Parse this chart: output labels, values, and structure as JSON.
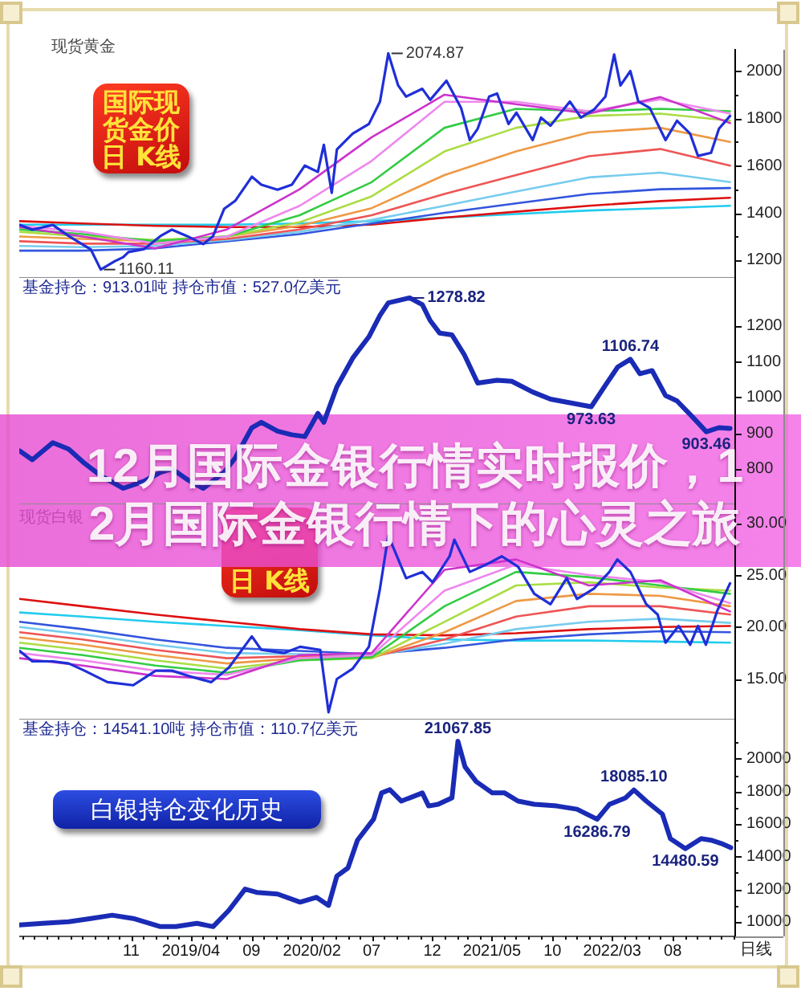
{
  "chart_data": [
    {
      "type": "line",
      "title": "12月国际金银行情实时报价，12月国际金银行情下的心灵之旅",
      "subtitle": "现货黄金",
      "annotations": [
        "国际现货金价日 K线",
        {
          "text": "2074.87",
          "x": "2020-08-12",
          "y": 2074.87
        },
        {
          "text": "1160.11",
          "x": "2018-08-16",
          "y": 1160.11
        }
      ],
      "series": [
        {
          "color": "#1f2fd8",
          "x": [
            "2018-01-23",
            "2018-02-24",
            "2018-04-17",
            "2018-05-27",
            "2018-07-06",
            "2018-07-22",
            "2018-08-16",
            "2018-09-20",
            "2018-10-12",
            "2018-10-25",
            "2018-12-04",
            "2019-01-14",
            "2019-02-12",
            "2019-03-22",
            "2019-05-02",
            "2019-05-27",
            "2019-06-24",
            "2019-07-22",
            "2019-09-02",
            "2019-09-26",
            "2019-11-06",
            "2019-12-12",
            "2020-01-14",
            "2020-02-16",
            "2020-03-02",
            "2020-03-22",
            "2020-04-04",
            "2020-05-14",
            "2020-06-24",
            "2020-07-22",
            "2020-08-12",
            "2020-09-06",
            "2020-09-26",
            "2020-11-06",
            "2020-11-26",
            "2021-01-06",
            "2021-02-12",
            "2021-03-06",
            "2021-03-26",
            "2021-04-24",
            "2021-05-14",
            "2021-06-12",
            "2021-07-02",
            "2021-08-12",
            "2021-09-02",
            "2021-09-26",
            "2021-11-14",
            "2021-12-12",
            "2022-01-14",
            "2022-02-12",
            "2022-03-06",
            "2022-03-22",
            "2022-04-16",
            "2022-05-06",
            "2022-06-04",
            "2022-07-14",
            "2022-08-12",
            "2022-09-14",
            "2022-10-04",
            "2022-11-06",
            "2022-11-26",
            "2022-12-24"
          ],
          "values": [
            1349,
            1329,
            1349,
            1302,
            1261,
            1245,
            1160.11,
            1195,
            1213,
            1234,
            1247,
            1302,
            1329,
            1302,
            1268,
            1302,
            1417,
            1451,
            1553,
            1519,
            1498,
            1519,
            1600,
            1573,
            1688,
            1485,
            1668,
            1735,
            1776,
            1871,
            2074.87,
            1939,
            1892,
            1925,
            1878,
            1959,
            1844,
            1708,
            1756,
            1892,
            1905,
            1776,
            1824,
            1708,
            1803,
            1769,
            1871,
            1803,
            1837,
            1892,
            2070,
            1939,
            2000,
            1871,
            1844,
            1708,
            1790,
            1735,
            1641,
            1654,
            1756,
            1810
          ]
        },
        {
          "color": "#cc33cc",
          "x": [
            "2018-01-23",
            "2018-07-01",
            "2019-01-01",
            "2019-07-01",
            "2020-01-01",
            "2020-07-01",
            "2021-01-01",
            "2021-07-01",
            "2022-01-01",
            "2022-07-01",
            "2022-12-24"
          ],
          "values": [
            1340,
            1300,
            1250,
            1330,
            1500,
            1720,
            1900,
            1860,
            1820,
            1890,
            1780
          ]
        },
        {
          "color": "#ee88ee",
          "x": [
            "2018-01-23",
            "2018-07-01",
            "2019-01-01",
            "2019-07-01",
            "2020-01-01",
            "2020-07-01",
            "2021-01-01",
            "2021-07-01",
            "2022-01-01",
            "2022-07-01",
            "2022-12-24"
          ],
          "values": [
            1345,
            1320,
            1270,
            1300,
            1430,
            1620,
            1870,
            1870,
            1830,
            1880,
            1820
          ]
        },
        {
          "color": "#33cc44",
          "x": [
            "2018-01-23",
            "2018-07-01",
            "2019-01-01",
            "2019-07-01",
            "2020-01-01",
            "2020-07-01",
            "2021-01-01",
            "2021-07-01",
            "2022-01-01",
            "2022-07-01",
            "2022-12-24"
          ],
          "values": [
            1330,
            1310,
            1280,
            1300,
            1390,
            1530,
            1760,
            1840,
            1830,
            1840,
            1830
          ]
        },
        {
          "color": "#aadd44",
          "x": [
            "2018-01-23",
            "2018-07-01",
            "2019-01-01",
            "2019-07-01",
            "2020-01-01",
            "2020-07-01",
            "2021-01-01",
            "2021-07-01",
            "2022-01-01",
            "2022-07-01",
            "2022-12-24"
          ],
          "values": [
            1320,
            1300,
            1285,
            1300,
            1360,
            1470,
            1660,
            1760,
            1810,
            1820,
            1790
          ]
        },
        {
          "color": "#ee9944",
          "x": [
            "2018-01-23",
            "2018-07-01",
            "2019-01-01",
            "2019-07-01",
            "2020-01-01",
            "2020-07-01",
            "2021-01-01",
            "2021-07-01",
            "2022-01-01",
            "2022-07-01",
            "2022-12-24"
          ],
          "values": [
            1300,
            1290,
            1280,
            1300,
            1345,
            1420,
            1560,
            1660,
            1740,
            1760,
            1700
          ]
        },
        {
          "color": "#ee5555",
          "x": [
            "2018-01-23",
            "2018-07-01",
            "2019-01-01",
            "2019-07-01",
            "2020-01-01",
            "2020-07-01",
            "2021-01-01",
            "2021-07-01",
            "2022-01-01",
            "2022-07-01",
            "2022-12-24"
          ],
          "values": [
            1280,
            1270,
            1270,
            1290,
            1330,
            1390,
            1480,
            1560,
            1640,
            1670,
            1600
          ]
        },
        {
          "color": "#77ccee",
          "x": [
            "2018-01-23",
            "2018-07-01",
            "2019-01-01",
            "2019-07-01",
            "2020-01-01",
            "2020-07-01",
            "2021-01-01",
            "2021-07-01",
            "2022-01-01",
            "2022-07-01",
            "2022-12-24"
          ],
          "values": [
            1260,
            1255,
            1260,
            1285,
            1320,
            1370,
            1430,
            1490,
            1550,
            1570,
            1530
          ]
        },
        {
          "color": "#3355dd",
          "x": [
            "2018-01-23",
            "2018-07-01",
            "2019-01-01",
            "2019-07-01",
            "2020-01-01",
            "2020-07-01",
            "2021-01-01",
            "2021-07-01",
            "2022-01-01",
            "2022-07-01",
            "2022-12-24"
          ],
          "values": [
            1240,
            1240,
            1250,
            1280,
            1310,
            1355,
            1400,
            1440,
            1480,
            1500,
            1505
          ]
        },
        {
          "color": "#dd1111",
          "x": [
            "2018-01-23",
            "2018-07-01",
            "2019-01-01",
            "2019-07-01",
            "2020-01-01",
            "2020-07-01",
            "2021-01-01",
            "2021-07-01",
            "2022-01-01",
            "2022-07-01",
            "2022-12-24"
          ],
          "values": [
            1365,
            1355,
            1345,
            1340,
            1340,
            1350,
            1380,
            1405,
            1430,
            1450,
            1464
          ]
        },
        {
          "color": "#22ccee",
          "x": [
            "2018-01-23",
            "2018-07-01",
            "2019-01-01",
            "2019-07-01",
            "2020-01-01",
            "2020-07-01",
            "2021-01-01",
            "2021-07-01",
            "2022-01-01",
            "2022-07-01",
            "2022-12-24"
          ],
          "values": [
            1350,
            1350,
            1350,
            1350,
            1355,
            1365,
            1380,
            1395,
            1410,
            1420,
            1430
          ]
        }
      ],
      "xlim": [
        "2018-01-22",
        "2023-01-06"
      ],
      "ylim": [
        1125,
        2090
      ],
      "yticks": [
        1200,
        {
          "value": 1300,
          "label": null
        },
        1400,
        {
          "value": 1500,
          "label": null
        },
        1600,
        {
          "value": 1700,
          "label": null
        },
        1800,
        {
          "value": 1900,
          "label": null
        },
        2000
      ],
      "tick_labels": "y"
    },
    {
      "type": "line",
      "title": "基金持仓：913.01吨 持仓市值：527.0亿美元",
      "annotations": [
        {
          "text": "1278.82",
          "x": "2020-10-05",
          "y": 1278.82
        },
        {
          "text": "1106.74",
          "x": "2022-04-16",
          "y": 1106.74
        },
        {
          "text": "973.63",
          "x": "2022-01-07",
          "y": 973.63
        },
        {
          "text": "903.46",
          "x": "2022-10-25",
          "y": 903.46
        }
      ],
      "series": [
        {
          "color": "#1a2bb5",
          "x": [
            "2018-01-23",
            "2018-02-24",
            "2018-04-17",
            "2018-05-27",
            "2018-07-06",
            "2018-08-16",
            "2018-10-12",
            "2018-12-04",
            "2019-01-14",
            "2019-02-12",
            "2019-03-22",
            "2019-05-02",
            "2019-06-24",
            "2019-07-22",
            "2019-09-02",
            "2019-09-26",
            "2019-11-06",
            "2019-12-12",
            "2020-01-14",
            "2020-02-16",
            "2020-03-02",
            "2020-04-04",
            "2020-05-14",
            "2020-06-24",
            "2020-07-22",
            "2020-08-12",
            "2020-10-05",
            "2020-11-06",
            "2020-11-26",
            "2020-12-20",
            "2021-01-20",
            "2021-02-20",
            "2021-03-26",
            "2021-05-14",
            "2021-06-20",
            "2021-08-12",
            "2021-09-26",
            "2021-11-14",
            "2022-01-07",
            "2022-02-12",
            "2022-03-15",
            "2022-04-16",
            "2022-05-10",
            "2022-06-10",
            "2022-07-14",
            "2022-08-12",
            "2022-09-20",
            "2022-10-25",
            "2022-11-26",
            "2022-12-24"
          ],
          "values": [
            850,
            825,
            873,
            855,
            815,
            780,
            745,
            765,
            790,
            800,
            770,
            745,
            790,
            830,
            915,
            930,
            905,
            895,
            890,
            955,
            930,
            1030,
            1110,
            1170,
            1230,
            1265,
            1278.82,
            1260,
            1215,
            1180,
            1175,
            1120,
            1040,
            1048,
            1045,
            1015,
            995,
            985,
            973.63,
            1034,
            1085,
            1106.74,
            1066,
            1075,
            1005,
            990,
            945,
            903.46,
            915,
            913.01
          ]
        }
      ],
      "xlim": [
        "2018-01-22",
        "2023-01-06"
      ],
      "ylim": [
        700,
        1335
      ],
      "yticks": [
        800,
        900,
        1000,
        1100,
        1200
      ],
      "tick_labels": "y"
    },
    {
      "type": "line",
      "title": "现货白银",
      "annotations": [
        "日 K线"
      ],
      "series": [
        {
          "color": "#1f2fd8",
          "x": [
            "2018-01-23",
            "2018-02-24",
            "2018-04-17",
            "2018-05-27",
            "2018-07-06",
            "2018-09-02",
            "2018-11-06",
            "2019-01-02",
            "2019-02-12",
            "2019-04-04",
            "2019-05-22",
            "2019-07-06",
            "2019-09-02",
            "2019-09-26",
            "2019-11-22",
            "2020-01-02",
            "2020-02-22",
            "2020-03-14",
            "2020-04-04",
            "2020-05-14",
            "2020-06-24",
            "2020-07-22",
            "2020-08-12",
            "2020-09-26",
            "2020-11-06",
            "2020-12-02",
            "2021-01-14",
            "2021-01-26",
            "2021-03-06",
            "2021-04-16",
            "2021-05-26",
            "2021-07-06",
            "2021-08-16",
            "2021-09-26",
            "2021-11-06",
            "2021-12-02",
            "2022-01-14",
            "2022-02-22",
            "2022-03-14",
            "2022-04-16",
            "2022-05-26",
            "2022-06-24",
            "2022-07-14",
            "2022-08-16",
            "2022-09-14",
            "2022-10-04",
            "2022-10-24",
            "2022-11-22",
            "2022-12-24"
          ],
          "values": [
            17.7,
            16.7,
            16.7,
            16.5,
            15.8,
            14.7,
            14.4,
            15.8,
            15.8,
            15.2,
            14.7,
            16.1,
            19.1,
            17.8,
            17.5,
            18.1,
            17.8,
            11.8,
            15.0,
            16.0,
            18.1,
            23.7,
            28.8,
            24.7,
            25.3,
            24.3,
            26.8,
            28.4,
            25.3,
            26.0,
            26.8,
            25.8,
            23.2,
            22.2,
            24.7,
            22.7,
            23.7,
            25.3,
            26.5,
            25.3,
            22.2,
            21.2,
            18.5,
            20.1,
            18.3,
            20.1,
            18.3,
            21.6,
            24.2
          ]
        },
        {
          "color": "#cc33cc",
          "x": [
            "2018-01-23",
            "2018-07-01",
            "2019-01-01",
            "2019-07-01",
            "2020-01-01",
            "2020-07-01",
            "2021-01-01",
            "2021-07-01",
            "2022-01-01",
            "2022-07-01",
            "2022-12-24"
          ],
          "values": [
            17.0,
            16.3,
            15.3,
            15.0,
            17.3,
            17.5,
            25.5,
            26.5,
            24.0,
            24.5,
            21.5
          ]
        },
        {
          "color": "#ee88ee",
          "x": [
            "2018-01-23",
            "2018-07-01",
            "2019-01-01",
            "2019-07-01",
            "2020-01-01",
            "2020-07-01",
            "2021-01-01",
            "2021-07-01",
            "2022-01-01",
            "2022-07-01",
            "2022-12-24"
          ],
          "values": [
            17.5,
            16.8,
            15.8,
            15.4,
            17.0,
            17.3,
            23.5,
            26.0,
            25.0,
            24.3,
            22.3
          ]
        },
        {
          "color": "#33cc44",
          "x": [
            "2018-01-23",
            "2018-07-01",
            "2019-01-01",
            "2019-07-01",
            "2020-01-01",
            "2020-07-01",
            "2021-01-01",
            "2021-07-01",
            "2022-01-01",
            "2022-07-01",
            "2022-12-24"
          ],
          "values": [
            18.0,
            17.3,
            16.3,
            15.6,
            16.8,
            17.1,
            22.0,
            25.3,
            24.8,
            24.0,
            23.2
          ]
        },
        {
          "color": "#aadd44",
          "x": [
            "2018-01-23",
            "2018-07-01",
            "2019-01-01",
            "2019-07-01",
            "2020-01-01",
            "2020-07-01",
            "2021-01-01",
            "2021-07-01",
            "2022-01-01",
            "2022-07-01",
            "2022-12-24"
          ],
          "values": [
            18.5,
            17.8,
            16.8,
            16.0,
            16.8,
            17.0,
            20.5,
            24.0,
            24.3,
            23.8,
            23.5
          ]
        },
        {
          "color": "#ee9944",
          "x": [
            "2018-01-23",
            "2018-07-01",
            "2019-01-01",
            "2019-07-01",
            "2020-01-01",
            "2020-07-01",
            "2021-01-01",
            "2021-07-01",
            "2022-01-01",
            "2022-07-01",
            "2022-12-24"
          ],
          "values": [
            19.0,
            18.3,
            17.3,
            16.5,
            17.0,
            17.0,
            19.5,
            22.5,
            23.2,
            23.0,
            22.0
          ]
        },
        {
          "color": "#ee5555",
          "x": [
            "2018-01-23",
            "2018-07-01",
            "2019-01-01",
            "2019-07-01",
            "2020-01-01",
            "2020-07-01",
            "2021-01-01",
            "2021-07-01",
            "2022-01-01",
            "2022-07-01",
            "2022-12-24"
          ],
          "values": [
            19.5,
            18.8,
            17.8,
            17.0,
            17.2,
            17.1,
            18.8,
            21.0,
            22.0,
            22.0,
            21.2
          ]
        },
        {
          "color": "#77ccee",
          "x": [
            "2018-01-23",
            "2018-07-01",
            "2019-01-01",
            "2019-07-01",
            "2020-01-01",
            "2020-07-01",
            "2021-01-01",
            "2021-07-01",
            "2022-01-01",
            "2022-07-01",
            "2022-12-24"
          ],
          "values": [
            20.0,
            19.3,
            18.3,
            17.5,
            17.4,
            17.2,
            18.4,
            19.8,
            20.5,
            20.8,
            20.4
          ]
        },
        {
          "color": "#3355dd",
          "x": [
            "2018-01-23",
            "2018-07-01",
            "2019-01-01",
            "2019-07-01",
            "2020-01-01",
            "2020-07-01",
            "2021-01-01",
            "2021-07-01",
            "2022-01-01",
            "2022-07-01",
            "2022-12-24"
          ],
          "values": [
            20.5,
            19.8,
            18.8,
            18.0,
            17.7,
            17.4,
            18.0,
            18.8,
            19.3,
            19.6,
            19.5
          ]
        },
        {
          "color": "#dd1111",
          "x": [
            "2018-01-23",
            "2018-07-01",
            "2019-01-01",
            "2019-07-01",
            "2020-01-01",
            "2020-07-01",
            "2021-01-01",
            "2021-07-01",
            "2022-01-01",
            "2022-07-01",
            "2022-12-24"
          ],
          "values": [
            22.7,
            22.0,
            21.2,
            20.5,
            19.8,
            19.3,
            19.2,
            19.4,
            19.8,
            20.0,
            20.1
          ]
        },
        {
          "color": "#22ccee",
          "x": [
            "2018-01-23",
            "2018-07-01",
            "2019-01-01",
            "2019-07-01",
            "2020-01-01",
            "2020-07-01",
            "2021-01-01",
            "2021-07-01",
            "2022-01-01",
            "2022-07-01",
            "2022-12-24"
          ],
          "values": [
            21.4,
            21.0,
            20.5,
            20.1,
            19.7,
            19.2,
            18.8,
            18.7,
            18.7,
            18.6,
            18.5
          ]
        }
      ],
      "xlim": [
        "2018-01-22",
        "2023-01-06"
      ],
      "ylim": [
        11.1,
        31.8
      ],
      "yticks": [
        {
          "value": 15,
          "label": "15.00"
        },
        {
          "value": 20,
          "label": "20.00"
        },
        {
          "value": 25,
          "label": "25.00"
        },
        {
          "value": 30,
          "label": "30.00"
        }
      ],
      "tick_labels": "y"
    },
    {
      "type": "line",
      "title": "基金持仓：14541.10吨 持仓市值：110.7亿美元",
      "xlabel": "日线",
      "annotations": [
        "白银持仓变化历史",
        {
          "text": "21067.85",
          "x": "2021-02-04",
          "y": 21067.85
        },
        {
          "text": "18085.10",
          "x": "2022-04-25",
          "y": 18085.1
        },
        {
          "text": "16286.79",
          "x": "2022-01-22",
          "y": 16286.79
        },
        {
          "text": "14480.59",
          "x": "2022-09-02",
          "y": 14480.59
        }
      ],
      "series": [
        {
          "color": "#1a2bb5",
          "x": [
            "2018-01-23",
            "2018-03-22",
            "2018-05-27",
            "2018-07-22",
            "2018-09-14",
            "2018-11-06",
            "2019-01-14",
            "2019-02-22",
            "2019-04-16",
            "2019-05-27",
            "2019-07-06",
            "2019-08-16",
            "2019-09-14",
            "2019-11-06",
            "2020-01-02",
            "2020-02-12",
            "2020-03-14",
            "2020-04-04",
            "2020-05-02",
            "2020-05-26",
            "2020-07-06",
            "2020-07-26",
            "2020-08-16",
            "2020-09-14",
            "2020-11-06",
            "2020-11-22",
            "2020-12-16",
            "2021-01-20",
            "2021-02-04",
            "2021-02-22",
            "2021-03-22",
            "2021-05-02",
            "2021-06-02",
            "2021-07-06",
            "2021-08-16",
            "2021-10-12",
            "2021-12-02",
            "2022-01-22",
            "2022-02-22",
            "2022-04-04",
            "2022-04-25",
            "2022-05-26",
            "2022-07-06",
            "2022-07-26",
            "2022-09-02",
            "2022-10-12",
            "2022-11-06",
            "2022-12-02",
            "2022-12-26"
          ],
          "values": [
            9800,
            9900,
            10000,
            10200,
            10400,
            10200,
            9700,
            9700,
            9900,
            9700,
            10700,
            12000,
            11800,
            11700,
            11200,
            11500,
            11000,
            12800,
            13300,
            15000,
            16300,
            17900,
            18100,
            17400,
            17900,
            17100,
            17200,
            17600,
            21067.85,
            19500,
            18600,
            17900,
            17900,
            17400,
            17200,
            17100,
            16900,
            16286.79,
            17200,
            17600,
            18085.1,
            17400,
            16600,
            15100,
            14480.59,
            15100,
            15000,
            14800,
            14541.1
          ]
        }
      ],
      "xlim": [
        "2018-01-22",
        "2023-01-06"
      ],
      "ylim": [
        9100,
        22400
      ],
      "yticks": [
        10000,
        {
          "value": 11000,
          "label": null
        },
        12000,
        {
          "value": 13000,
          "label": null
        },
        14000,
        {
          "value": 15000,
          "label": null
        },
        16000,
        {
          "value": 17000,
          "label": null
        },
        18000,
        {
          "value": 19000,
          "label": null
        },
        20000,
        {
          "value": 21000,
          "label": null
        }
      ],
      "xticks": [
        {
          "value": "2018-02",
          "label": null
        },
        {
          "value": "2018-03",
          "label": null
        },
        {
          "value": "2018-04",
          "label": null
        },
        {
          "value": "2018-05",
          "label": null
        },
        {
          "value": "2018-06",
          "label": null
        },
        {
          "value": "2018-07",
          "label": null
        },
        {
          "value": "2018-08",
          "label": null
        },
        {
          "value": "2018-09",
          "label": null
        },
        {
          "value": "2018-10",
          "label": null
        },
        {
          "value": "2018-11",
          "label": "11"
        },
        {
          "value": "2018-12",
          "label": null
        },
        {
          "value": "2019-01",
          "label": null
        },
        {
          "value": "2019-02",
          "label": null
        },
        {
          "value": "2019-03",
          "label": null
        },
        {
          "value": "2019-04",
          "label": "2019/04"
        },
        {
          "value": "2019-05",
          "label": null
        },
        {
          "value": "2019-06",
          "label": null
        },
        {
          "value": "2019-07",
          "label": null
        },
        {
          "value": "2019-08",
          "label": null
        },
        {
          "value": "2019-09",
          "label": "09"
        },
        {
          "value": "2019-10",
          "label": null
        },
        {
          "value": "2019-11",
          "label": null
        },
        {
          "value": "2019-12",
          "label": null
        },
        {
          "value": "2020-01",
          "label": null
        },
        {
          "value": "2020-02",
          "label": "2020/02"
        },
        {
          "value": "2020-03",
          "label": null
        },
        {
          "value": "2020-04",
          "label": null
        },
        {
          "value": "2020-05",
          "label": null
        },
        {
          "value": "2020-06",
          "label": null
        },
        {
          "value": "2020-07",
          "label": "07"
        },
        {
          "value": "2020-08",
          "label": null
        },
        {
          "value": "2020-09",
          "label": null
        },
        {
          "value": "2020-10",
          "label": null
        },
        {
          "value": "2020-11",
          "label": null
        },
        {
          "value": "2020-12",
          "label": "12"
        },
        {
          "value": "2021-01",
          "label": null
        },
        {
          "value": "2021-02",
          "label": null
        },
        {
          "value": "2021-03",
          "label": null
        },
        {
          "value": "2021-04",
          "label": null
        },
        {
          "value": "2021-05",
          "label": "2021/05"
        },
        {
          "value": "2021-06",
          "label": null
        },
        {
          "value": "2021-07",
          "label": null
        },
        {
          "value": "2021-08",
          "label": null
        },
        {
          "value": "2021-09",
          "label": null
        },
        {
          "value": "2021-10",
          "label": "10"
        },
        {
          "value": "2021-11",
          "label": null
        },
        {
          "value": "2021-12",
          "label": null
        },
        {
          "value": "2022-01",
          "label": null
        },
        {
          "value": "2022-02",
          "label": null
        },
        {
          "value": "2022-03",
          "label": "2022/03"
        },
        {
          "value": "2022-04",
          "label": null
        },
        {
          "value": "2022-05",
          "label": null
        },
        {
          "value": "2022-06",
          "label": null
        },
        {
          "value": "2022-07",
          "label": null
        },
        {
          "value": "2022-08",
          "label": "08"
        },
        {
          "value": "2022-09",
          "label": null
        },
        {
          "value": "2022-10",
          "label": null
        },
        {
          "value": "2022-11",
          "label": null
        },
        {
          "value": "2022-12",
          "label": null
        },
        {
          "value": "2023-01",
          "label": null
        }
      ]
    }
  ]
}
